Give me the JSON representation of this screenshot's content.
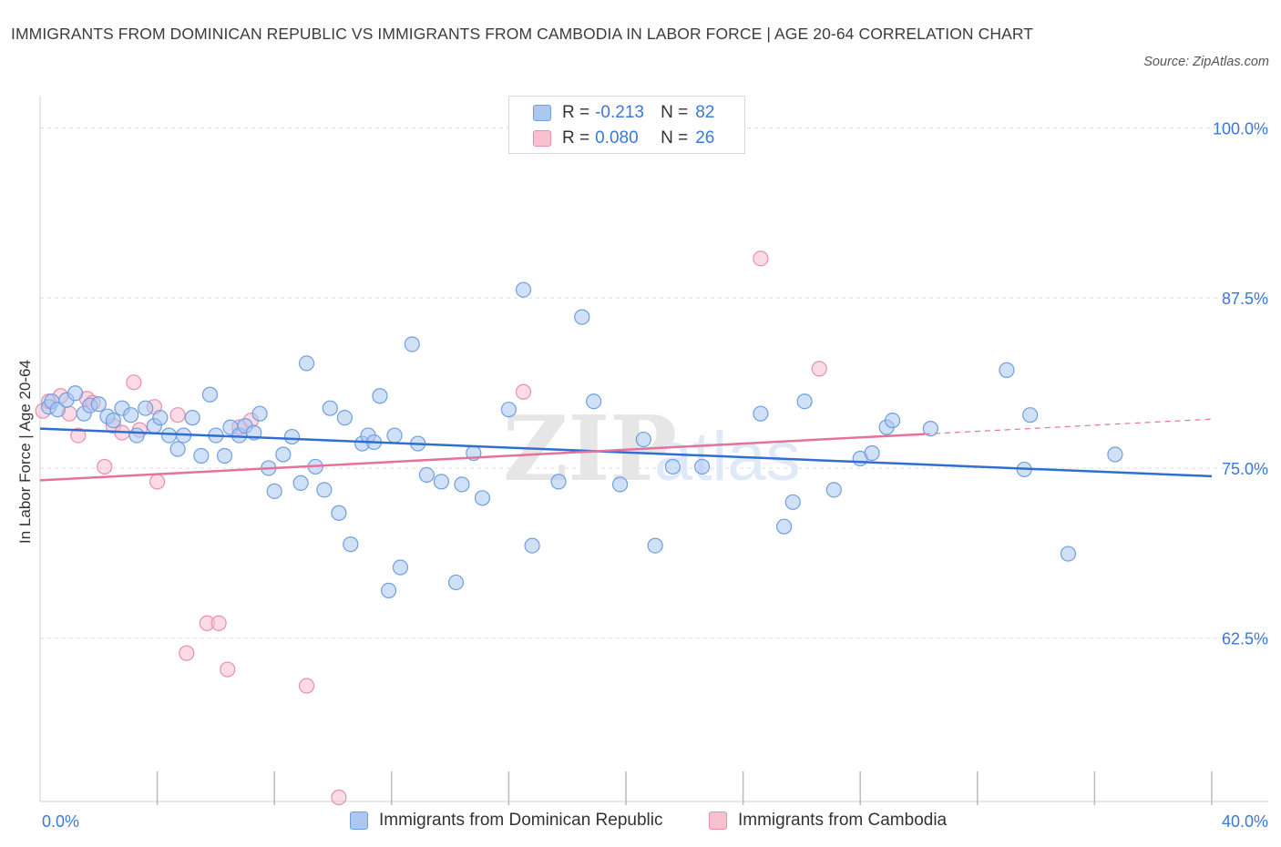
{
  "header": {
    "title": "IMMIGRANTS FROM DOMINICAN REPUBLIC VS IMMIGRANTS FROM CAMBODIA IN LABOR FORCE | AGE 20-64 CORRELATION CHART",
    "source": "Source: ZipAtlas.com"
  },
  "watermark": {
    "zip": "ZIP",
    "atlas": "atlas"
  },
  "legend_top": {
    "rows": [
      {
        "r_label": "R =",
        "r_value": "-0.213",
        "n_label": "N =",
        "n_value": "82",
        "color": "#aac8f0",
        "border": "#6a9ee0"
      },
      {
        "r_label": "R =",
        "r_value": "0.080",
        "n_label": "N =",
        "n_value": "26",
        "color": "#f8c0d0",
        "border": "#e890aa"
      }
    ]
  },
  "legend_bottom": {
    "items": [
      {
        "label": "Immigrants from Dominican Republic",
        "color": "#aac8f0",
        "border": "#6a9ee0"
      },
      {
        "label": "Immigrants from Cambodia",
        "color": "#f8c0d0",
        "border": "#e890aa"
      }
    ]
  },
  "colors": {
    "blue_line": "#2f6fd0",
    "pink_line": "#e57399",
    "blue_fill": "#a9c7f0",
    "blue_stroke": "#6f9fe0",
    "pink_fill": "#f7c0d2",
    "pink_stroke": "#e88fab",
    "tick_text": "#3b78d8",
    "grid": "#dddddd"
  },
  "chart_data": {
    "type": "scatter",
    "title": "IMMIGRANTS FROM DOMINICAN REPUBLIC VS IMMIGRANTS FROM CAMBODIA IN LABOR FORCE | AGE 20-64 CORRELATION CHART",
    "xlabel": "",
    "ylabel": "In Labor Force | Age 20-64",
    "xlim": [
      0,
      40
    ],
    "ylim": [
      50.5,
      101.5
    ],
    "x_tick_labels": [
      {
        "value": 0,
        "label": "0.0%"
      },
      {
        "value": 40,
        "label": "40.0%"
      }
    ],
    "y_ticks": [
      {
        "value": 100,
        "label": "100.0%"
      },
      {
        "value": 87.5,
        "label": "87.5%"
      },
      {
        "value": 75,
        "label": "75.0%"
      },
      {
        "value": 62.5,
        "label": "62.5%"
      }
    ],
    "grid": true,
    "legend_position": "bottom",
    "series": [
      {
        "name": "Immigrants from Dominican Republic",
        "color": "#a9c7f0",
        "R": -0.213,
        "N": 82,
        "trend": {
          "x": [
            0,
            40
          ],
          "y": [
            77.9,
            74.4
          ]
        },
        "points": [
          [
            0.3,
            79.5
          ],
          [
            0.4,
            79.9
          ],
          [
            0.6,
            79.3
          ],
          [
            0.9,
            80.0
          ],
          [
            1.2,
            80.5
          ],
          [
            1.5,
            79.0
          ],
          [
            1.7,
            79.6
          ],
          [
            2.0,
            79.7
          ],
          [
            2.3,
            78.8
          ],
          [
            2.5,
            78.5
          ],
          [
            2.8,
            79.4
          ],
          [
            3.1,
            78.9
          ],
          [
            3.3,
            77.4
          ],
          [
            3.6,
            79.4
          ],
          [
            3.9,
            78.1
          ],
          [
            4.1,
            78.7
          ],
          [
            4.4,
            77.4
          ],
          [
            4.7,
            76.4
          ],
          [
            4.9,
            77.4
          ],
          [
            5.2,
            78.7
          ],
          [
            5.5,
            75.9
          ],
          [
            5.8,
            80.4
          ],
          [
            6.0,
            77.4
          ],
          [
            6.3,
            75.9
          ],
          [
            6.5,
            78.0
          ],
          [
            6.8,
            77.4
          ],
          [
            7.0,
            78.1
          ],
          [
            7.3,
            77.6
          ],
          [
            7.5,
            79.0
          ],
          [
            7.8,
            75.0
          ],
          [
            8.0,
            73.3
          ],
          [
            8.3,
            76.0
          ],
          [
            8.6,
            77.3
          ],
          [
            8.9,
            73.9
          ],
          [
            9.1,
            82.7
          ],
          [
            9.4,
            75.1
          ],
          [
            9.7,
            73.4
          ],
          [
            9.9,
            79.4
          ],
          [
            10.2,
            71.7
          ],
          [
            10.4,
            78.7
          ],
          [
            10.6,
            69.4
          ],
          [
            11.0,
            76.8
          ],
          [
            11.2,
            77.4
          ],
          [
            11.4,
            76.9
          ],
          [
            11.6,
            80.3
          ],
          [
            11.9,
            66.0
          ],
          [
            12.1,
            77.4
          ],
          [
            12.3,
            67.7
          ],
          [
            12.7,
            84.1
          ],
          [
            12.9,
            76.8
          ],
          [
            13.2,
            74.5
          ],
          [
            13.7,
            74.0
          ],
          [
            14.2,
            66.6
          ],
          [
            14.4,
            73.8
          ],
          [
            14.8,
            76.1
          ],
          [
            15.1,
            72.8
          ],
          [
            16.0,
            79.3
          ],
          [
            16.5,
            88.1
          ],
          [
            16.8,
            69.3
          ],
          [
            17.7,
            74.0
          ],
          [
            18.5,
            86.1
          ],
          [
            18.9,
            79.9
          ],
          [
            19.8,
            73.8
          ],
          [
            20.6,
            77.1
          ],
          [
            21.0,
            69.3
          ],
          [
            21.6,
            75.1
          ],
          [
            22.6,
            75.1
          ],
          [
            24.6,
            79.0
          ],
          [
            25.4,
            70.7
          ],
          [
            25.7,
            72.5
          ],
          [
            26.1,
            79.9
          ],
          [
            27.1,
            73.4
          ],
          [
            28.0,
            75.7
          ],
          [
            28.4,
            76.1
          ],
          [
            28.9,
            78.0
          ],
          [
            29.1,
            78.5
          ],
          [
            30.4,
            77.9
          ],
          [
            33.0,
            82.2
          ],
          [
            33.6,
            74.9
          ],
          [
            33.8,
            78.9
          ],
          [
            35.1,
            68.7
          ],
          [
            36.7,
            76.0
          ]
        ]
      },
      {
        "name": "Immigrants from Cambodia",
        "color": "#f7c0d2",
        "R": 0.08,
        "N": 26,
        "trend": {
          "x": [
            0,
            30.2
          ],
          "y": [
            74.1,
            77.5
          ]
        },
        "trend_dashed": {
          "x": [
            30.2,
            40
          ],
          "y": [
            77.5,
            78.6
          ]
        },
        "points": [
          [
            0.1,
            79.2
          ],
          [
            0.3,
            79.9
          ],
          [
            0.7,
            80.3
          ],
          [
            1.0,
            79.0
          ],
          [
            1.3,
            77.4
          ],
          [
            1.6,
            80.1
          ],
          [
            1.8,
            79.8
          ],
          [
            2.2,
            75.1
          ],
          [
            2.5,
            78.1
          ],
          [
            2.8,
            77.6
          ],
          [
            3.2,
            81.3
          ],
          [
            3.4,
            77.8
          ],
          [
            3.9,
            79.5
          ],
          [
            4.0,
            74.0
          ],
          [
            4.7,
            78.9
          ],
          [
            5.0,
            61.4
          ],
          [
            5.7,
            63.6
          ],
          [
            6.1,
            63.6
          ],
          [
            6.4,
            60.2
          ],
          [
            6.8,
            78.0
          ],
          [
            7.2,
            78.5
          ],
          [
            9.1,
            59.0
          ],
          [
            10.2,
            50.8
          ],
          [
            16.5,
            80.6
          ],
          [
            24.6,
            90.4
          ],
          [
            26.6,
            82.3
          ]
        ]
      }
    ]
  }
}
